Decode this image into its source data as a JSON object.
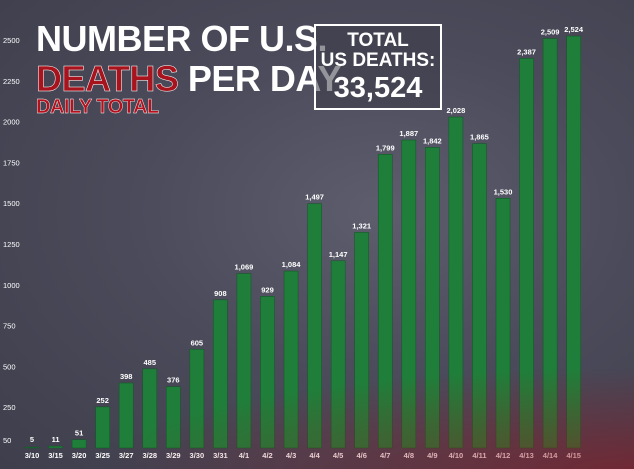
{
  "headline": {
    "line1": "NUMBER OF U.S.",
    "line2_red": "DEATHS",
    "line2_rest": " PER DAY",
    "subtitle": "DAILY TOTAL"
  },
  "total_box": {
    "label_line1": "TOTAL",
    "label_line2": "US DEATHS:",
    "value": "33,524"
  },
  "colors": {
    "bar": "#1f7f3a",
    "bar_edge": "#155a29",
    "text": "#ffffff",
    "accent_red": "#a8141e"
  },
  "chart_data": {
    "type": "bar",
    "title": "Number of U.S. deaths per day - daily total",
    "xlabel": "",
    "ylabel": "",
    "ylim": [
      0,
      2600
    ],
    "yticks": [
      50,
      250,
      500,
      750,
      1000,
      1250,
      1500,
      1750,
      2000,
      2250,
      2500
    ],
    "categories": [
      "3/10",
      "3/15",
      "3/20",
      "3/25",
      "3/27",
      "3/28",
      "3/29",
      "3/30",
      "3/31",
      "4/1",
      "4/2",
      "4/3",
      "4/4",
      "4/5",
      "4/6",
      "4/7",
      "4/8",
      "4/9",
      "4/10",
      "4/11",
      "4/12",
      "4/13",
      "4/14",
      "4/15"
    ],
    "values": [
      5,
      11,
      51,
      252,
      398,
      485,
      376,
      605,
      908,
      1069,
      929,
      1084,
      1497,
      1147,
      1321,
      1799,
      1887,
      1842,
      2028,
      1865,
      1530,
      2387,
      2509,
      2524
    ],
    "value_labels": [
      "5",
      "11",
      "51",
      "252",
      "398",
      "485",
      "376",
      "605",
      "908",
      "1,069",
      "929",
      "1,084",
      "1,497",
      "1,147",
      "1,321",
      "1,799",
      "1,887",
      "1,842",
      "2,028",
      "1,865",
      "1,530",
      "2,387",
      "2,509",
      "2,524"
    ]
  }
}
